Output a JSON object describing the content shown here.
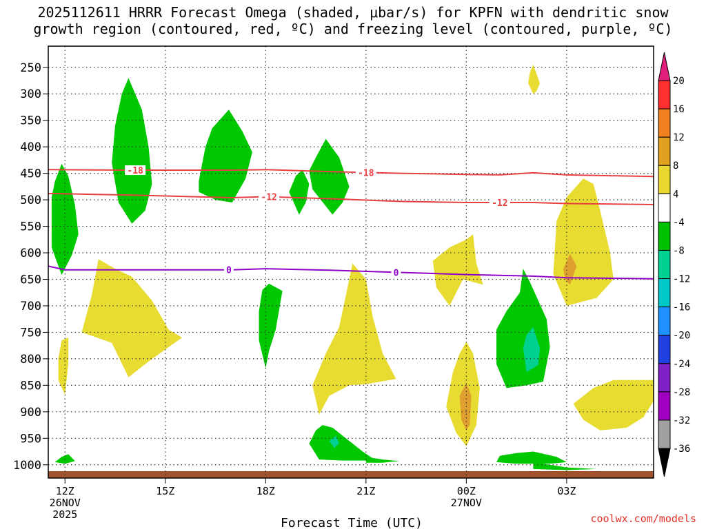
{
  "chart_data": {
    "type": "contour-timeheight",
    "title_line1": "2025112611 HRRR Forecast Omega (shaded, μbar/s) for KPFN with dendritic snow",
    "title_line2": "growth region (contoured, red, ºC) and freezing level (contoured, purple, ºC)",
    "xlabel": "Forecast Time (UTC)",
    "credit": "coolwx.com/models",
    "x_range_hours": [
      11.5,
      29.6
    ],
    "y_range_mb": [
      210,
      1025
    ],
    "y_ticks": [
      {
        "v": 250,
        "label": "250"
      },
      {
        "v": 300,
        "label": "300"
      },
      {
        "v": 350,
        "label": "350"
      },
      {
        "v": 400,
        "label": "400"
      },
      {
        "v": 450,
        "label": "450"
      },
      {
        "v": 500,
        "label": "500"
      },
      {
        "v": 550,
        "label": "550"
      },
      {
        "v": 600,
        "label": "600"
      },
      {
        "v": 650,
        "label": "650"
      },
      {
        "v": 700,
        "label": "700"
      },
      {
        "v": 750,
        "label": "750"
      },
      {
        "v": 800,
        "label": "800"
      },
      {
        "v": 850,
        "label": "850"
      },
      {
        "v": 900,
        "label": "900"
      },
      {
        "v": 950,
        "label": "950"
      },
      {
        "v": 1000,
        "label": "1000"
      }
    ],
    "x_ticks": [
      {
        "h": 12,
        "lines": [
          "12Z",
          "26NOV",
          "2025"
        ]
      },
      {
        "h": 15,
        "lines": [
          "15Z"
        ]
      },
      {
        "h": 18,
        "lines": [
          "18Z"
        ]
      },
      {
        "h": 21,
        "lines": [
          "21Z"
        ]
      },
      {
        "h": 24,
        "lines": [
          "00Z",
          "27NOV"
        ]
      },
      {
        "h": 27,
        "lines": [
          "03Z"
        ]
      }
    ],
    "colorbar": {
      "labels": [
        "20",
        "16",
        "12",
        "8",
        "4",
        "-4",
        "-8",
        "-12",
        "-16",
        "-20",
        "-24",
        "-28",
        "-32",
        "-36"
      ],
      "colors": [
        "#ff3030",
        "#f08020",
        "#e0a020",
        "#e8d830",
        "#ffffff",
        "#00c000",
        "#00d090",
        "#00c8c8",
        "#1e90ff",
        "#2040e0",
        "#8020c8",
        "#a000c0",
        "#a0a0a0"
      ],
      "top_arrow_color": "#e0207a",
      "bottom_arrow_color": "#000000"
    },
    "shading_colors": {
      "green": "#00c800",
      "teal": "#00d090",
      "yellow": "#e8dc32",
      "orange": "#e0a030"
    },
    "terrain_color": "#a0522d",
    "lines": [
      {
        "name": "-18C isotherm",
        "color": "#e84040",
        "label": "-18",
        "points": [
          [
            11.5,
            443
          ],
          [
            14,
            444
          ],
          [
            17,
            444
          ],
          [
            18,
            443
          ],
          [
            20,
            447
          ],
          [
            22,
            450
          ],
          [
            24,
            452
          ],
          [
            25,
            453
          ],
          [
            26,
            449
          ],
          [
            27,
            453
          ],
          [
            29.6,
            456
          ]
        ],
        "label_at_h": [
          14.1,
          21.0
        ]
      },
      {
        "name": "-12C isotherm",
        "color": "#e84040",
        "label": "-12",
        "points": [
          [
            11.5,
            488
          ],
          [
            14,
            491
          ],
          [
            17,
            496
          ],
          [
            18,
            494
          ],
          [
            20,
            498
          ],
          [
            22,
            503
          ],
          [
            24,
            505
          ],
          [
            26,
            505
          ],
          [
            27,
            507
          ],
          [
            29.6,
            509
          ]
        ],
        "label_at_h": [
          18.1,
          25.0
        ]
      },
      {
        "name": "0C freezing level",
        "color": "#9000c8",
        "label": "0",
        "points": [
          [
            11.5,
            625
          ],
          [
            12,
            632
          ],
          [
            15,
            632
          ],
          [
            17,
            632
          ],
          [
            18,
            630
          ],
          [
            20,
            633
          ],
          [
            22,
            637
          ],
          [
            24,
            641
          ],
          [
            26,
            644
          ],
          [
            27,
            647
          ],
          [
            29.6,
            649
          ]
        ],
        "label_at_h": [
          16.9,
          21.9
        ]
      }
    ],
    "regions": [
      {
        "color": "green",
        "points": [
          [
            11.6,
            495
          ],
          [
            11.7,
            465
          ],
          [
            11.9,
            432
          ],
          [
            12.1,
            455
          ],
          [
            12.3,
            510
          ],
          [
            12.4,
            565
          ],
          [
            12.2,
            605
          ],
          [
            11.9,
            642
          ],
          [
            11.6,
            590
          ]
        ]
      },
      {
        "color": "yellow",
        "points": [
          [
            11.8,
            800
          ],
          [
            11.9,
            765
          ],
          [
            12.1,
            760
          ],
          [
            12.1,
            810
          ],
          [
            12.0,
            868
          ],
          [
            11.8,
            840
          ]
        ]
      },
      {
        "color": "green",
        "points": [
          [
            11.7,
            995
          ],
          [
            11.9,
            985
          ],
          [
            12.1,
            980
          ],
          [
            12.3,
            993
          ],
          [
            12.0,
            998
          ]
        ]
      },
      {
        "color": "green",
        "points": [
          [
            13.4,
            430
          ],
          [
            13.5,
            360
          ],
          [
            13.7,
            300
          ],
          [
            13.9,
            270
          ],
          [
            14.3,
            330
          ],
          [
            14.5,
            400
          ],
          [
            14.6,
            470
          ],
          [
            14.4,
            520
          ],
          [
            14.0,
            545
          ],
          [
            13.6,
            505
          ]
        ]
      },
      {
        "color": "yellow",
        "points": [
          [
            12.5,
            750
          ],
          [
            12.8,
            680
          ],
          [
            13.0,
            612
          ],
          [
            13.5,
            630
          ],
          [
            14.0,
            645
          ],
          [
            14.6,
            690
          ],
          [
            15.1,
            745
          ],
          [
            15.5,
            760
          ],
          [
            14.5,
            805
          ],
          [
            13.9,
            835
          ],
          [
            13.4,
            770
          ]
        ]
      },
      {
        "color": "green",
        "points": [
          [
            16.0,
            465
          ],
          [
            16.2,
            400
          ],
          [
            16.4,
            365
          ],
          [
            16.9,
            330
          ],
          [
            17.3,
            370
          ],
          [
            17.6,
            410
          ],
          [
            17.4,
            460
          ],
          [
            17.0,
            505
          ],
          [
            16.5,
            500
          ],
          [
            16.0,
            485
          ]
        ]
      },
      {
        "color": "green",
        "points": [
          [
            18.7,
            485
          ],
          [
            18.9,
            455
          ],
          [
            19.1,
            443
          ],
          [
            19.3,
            470
          ],
          [
            19.2,
            505
          ],
          [
            19.0,
            528
          ]
        ]
      },
      {
        "color": "green",
        "points": [
          [
            17.8,
            710
          ],
          [
            17.9,
            670
          ],
          [
            18.1,
            658
          ],
          [
            18.5,
            672
          ],
          [
            18.3,
            745
          ],
          [
            18.1,
            785
          ],
          [
            18.0,
            818
          ],
          [
            17.8,
            765
          ]
        ]
      },
      {
        "color": "yellow",
        "points": [
          [
            19.4,
            850
          ],
          [
            19.8,
            790
          ],
          [
            20.2,
            740
          ],
          [
            20.4,
            680
          ],
          [
            20.6,
            620
          ],
          [
            21.0,
            650
          ],
          [
            21.2,
            720
          ],
          [
            21.5,
            790
          ],
          [
            21.9,
            838
          ],
          [
            21.0,
            848
          ],
          [
            20.5,
            850
          ],
          [
            19.9,
            870
          ],
          [
            19.6,
            905
          ]
        ]
      },
      {
        "color": "green",
        "points": [
          [
            19.3,
            445
          ],
          [
            19.5,
            420
          ],
          [
            19.8,
            385
          ],
          [
            20.2,
            420
          ],
          [
            20.5,
            475
          ],
          [
            20.3,
            505
          ],
          [
            20.0,
            528
          ],
          [
            19.4,
            480
          ]
        ]
      },
      {
        "color": "green",
        "points": [
          [
            19.3,
            960
          ],
          [
            19.5,
            935
          ],
          [
            19.7,
            925
          ],
          [
            20.0,
            930
          ],
          [
            20.4,
            950
          ],
          [
            20.9,
            975
          ],
          [
            21.3,
            992
          ],
          [
            20.3,
            992
          ],
          [
            19.6,
            990
          ]
        ]
      },
      {
        "color": "teal",
        "points": [
          [
            19.9,
            955
          ],
          [
            20.1,
            945
          ],
          [
            20.2,
            960
          ],
          [
            20.05,
            968
          ]
        ]
      },
      {
        "color": "green",
        "points": [
          [
            21.0,
            985
          ],
          [
            21.5,
            990
          ],
          [
            22.0,
            993
          ],
          [
            21.5,
            996
          ],
          [
            21.0,
            996
          ]
        ]
      },
      {
        "color": "yellow",
        "points": [
          [
            23.0,
            615
          ],
          [
            23.5,
            590
          ],
          [
            24.0,
            575
          ],
          [
            24.2,
            565
          ],
          [
            24.3,
            620
          ],
          [
            24.5,
            660
          ],
          [
            23.9,
            650
          ],
          [
            23.5,
            700
          ],
          [
            23.1,
            665
          ]
        ]
      },
      {
        "color": "yellow",
        "points": [
          [
            23.4,
            890
          ],
          [
            23.6,
            825
          ],
          [
            23.8,
            790
          ],
          [
            24.0,
            768
          ],
          [
            24.2,
            790
          ],
          [
            24.4,
            855
          ],
          [
            24.3,
            925
          ],
          [
            24.0,
            965
          ],
          [
            23.7,
            940
          ]
        ]
      },
      {
        "color": "orange",
        "points": [
          [
            23.8,
            870
          ],
          [
            24.0,
            845
          ],
          [
            24.15,
            870
          ],
          [
            24.1,
            925
          ],
          [
            24.0,
            935
          ],
          [
            23.85,
            915
          ]
        ]
      },
      {
        "color": "green",
        "points": [
          [
            24.9,
            745
          ],
          [
            25.2,
            710
          ],
          [
            25.6,
            675
          ],
          [
            25.7,
            630
          ],
          [
            25.9,
            655
          ],
          [
            26.4,
            725
          ],
          [
            26.5,
            778
          ],
          [
            26.3,
            843
          ],
          [
            25.8,
            850
          ],
          [
            25.2,
            855
          ],
          [
            24.9,
            810
          ]
        ]
      },
      {
        "color": "teal",
        "points": [
          [
            25.7,
            780
          ],
          [
            25.8,
            755
          ],
          [
            26.0,
            740
          ],
          [
            26.2,
            780
          ],
          [
            26.15,
            812
          ],
          [
            25.8,
            825
          ]
        ]
      },
      {
        "color": "yellow",
        "points": [
          [
            25.9,
            260
          ],
          [
            26.0,
            245
          ],
          [
            26.2,
            280
          ],
          [
            26.1,
            295
          ],
          [
            26.0,
            300
          ],
          [
            25.85,
            280
          ]
        ]
      },
      {
        "color": "green",
        "points": [
          [
            25.0,
            983
          ],
          [
            25.5,
            978
          ],
          [
            26.0,
            975
          ],
          [
            26.7,
            985
          ],
          [
            27.0,
            995
          ],
          [
            26.5,
            998
          ],
          [
            25.5,
            998
          ],
          [
            24.9,
            995
          ]
        ]
      },
      {
        "color": "yellow",
        "points": [
          [
            26.7,
            540
          ],
          [
            27.0,
            495
          ],
          [
            27.5,
            460
          ],
          [
            27.8,
            470
          ],
          [
            28.0,
            520
          ],
          [
            28.3,
            600
          ],
          [
            28.4,
            650
          ],
          [
            27.9,
            685
          ],
          [
            27.0,
            700
          ],
          [
            26.6,
            640
          ]
        ]
      },
      {
        "color": "orange",
        "points": [
          [
            26.9,
            630
          ],
          [
            27.1,
            602
          ],
          [
            27.3,
            625
          ],
          [
            27.1,
            660
          ],
          [
            26.95,
            650
          ]
        ]
      },
      {
        "color": "yellow",
        "points": [
          [
            27.2,
            885
          ],
          [
            27.8,
            855
          ],
          [
            28.4,
            840
          ],
          [
            29.6,
            840
          ],
          [
            29.6,
            880
          ],
          [
            29.3,
            910
          ],
          [
            28.8,
            930
          ],
          [
            28.0,
            935
          ],
          [
            27.5,
            915
          ]
        ]
      },
      {
        "color": "green",
        "points": [
          [
            26.0,
            995
          ],
          [
            27.0,
            1005
          ],
          [
            27.9,
            1008
          ],
          [
            27.0,
            1010
          ],
          [
            26.0,
            1008
          ]
        ]
      }
    ]
  }
}
